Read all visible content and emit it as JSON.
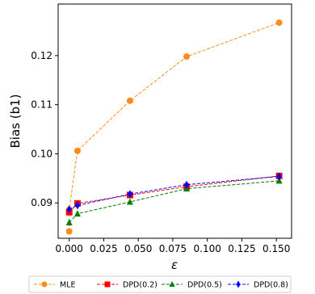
{
  "chart_data": {
    "type": "line",
    "xlabel": "ε",
    "ylabel": "Bias (b1)",
    "xlim": [
      -0.008,
      0.161
    ],
    "ylim": [
      0.0828,
      0.1305
    ],
    "x_ticks": [
      "0.000",
      "0.025",
      "0.050",
      "0.075",
      "0.100",
      "0.125",
      "0.150"
    ],
    "y_ticks": [
      "0.09",
      "0.10",
      "0.11",
      "0.12"
    ],
    "grid": false,
    "legend_position": "bottom",
    "series": [
      {
        "name": "MLE",
        "color": "#ff8c1a",
        "marker": "circle",
        "x": [
          0.0,
          0.0,
          0.006,
          0.044,
          0.085,
          0.152
        ],
        "y": [
          0.0842,
          0.0886,
          0.1006,
          0.1108,
          0.1198,
          0.1267
        ]
      },
      {
        "name": "DPD(0.2)",
        "color": "#ff0000",
        "marker": "square",
        "x": [
          0.0,
          0.006,
          0.044,
          0.085,
          0.152
        ],
        "y": [
          0.0881,
          0.0899,
          0.0916,
          0.0933,
          0.0955
        ]
      },
      {
        "name": "DPD(0.5)",
        "color": "#008000",
        "marker": "triangle",
        "x": [
          0.0,
          0.006,
          0.044,
          0.085,
          0.152
        ],
        "y": [
          0.086,
          0.0878,
          0.0902,
          0.0929,
          0.0945
        ]
      },
      {
        "name": "DPD(0.8)",
        "color": "#0000ff",
        "marker": "diamond",
        "x": [
          0.0,
          0.006,
          0.044,
          0.085,
          0.152
        ],
        "y": [
          0.0887,
          0.0895,
          0.0918,
          0.0937,
          0.0954
        ]
      }
    ]
  }
}
